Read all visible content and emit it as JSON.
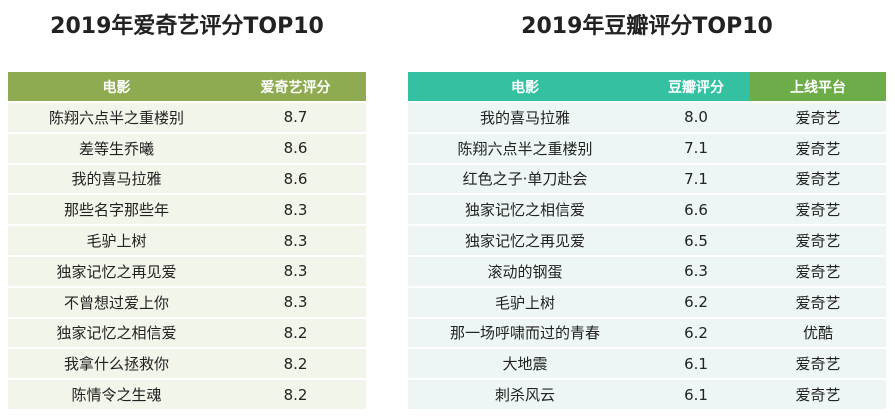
{
  "left": {
    "title": "2019年爱奇艺评分TOP10",
    "table": {
      "headers": [
        "电影",
        "爱奇艺评分"
      ],
      "rows": [
        [
          "陈翔六点半之重楼别",
          "8.7"
        ],
        [
          "差等生乔曦",
          "8.6"
        ],
        [
          "我的喜马拉雅",
          "8.6"
        ],
        [
          "那些名字那些年",
          "8.3"
        ],
        [
          "毛驴上树",
          "8.3"
        ],
        [
          "独家记忆之再见爱",
          "8.3"
        ],
        [
          "不曾想过爱上你",
          "8.3"
        ],
        [
          "独家记忆之相信爱",
          "8.2"
        ],
        [
          "我拿什么拯救你",
          "8.2"
        ],
        [
          "陈情令之生魂",
          "8.2"
        ]
      ]
    }
  },
  "right": {
    "title": "2019年豆瓣评分TOP10",
    "table": {
      "headers": [
        "电影",
        "豆瓣评分",
        "上线平台"
      ],
      "rows": [
        [
          "我的喜马拉雅",
          "8.0",
          "爱奇艺"
        ],
        [
          "陈翔六点半之重楼别",
          "7.1",
          "爱奇艺"
        ],
        [
          "红色之子·单刀赴会",
          "7.1",
          "爱奇艺"
        ],
        [
          "独家记忆之相信爱",
          "6.6",
          "爱奇艺"
        ],
        [
          "独家记忆之再见爱",
          "6.5",
          "爱奇艺"
        ],
        [
          "滚动的钢蛋",
          "6.3",
          "爱奇艺"
        ],
        [
          "毛驴上树",
          "6.2",
          "爱奇艺"
        ],
        [
          "那一场呼啸而过的青春",
          "6.2",
          "优酷"
        ],
        [
          "大地震",
          "6.1",
          "爱奇艺"
        ],
        [
          "刺杀风云",
          "6.1",
          "爱奇艺"
        ]
      ]
    }
  }
}
